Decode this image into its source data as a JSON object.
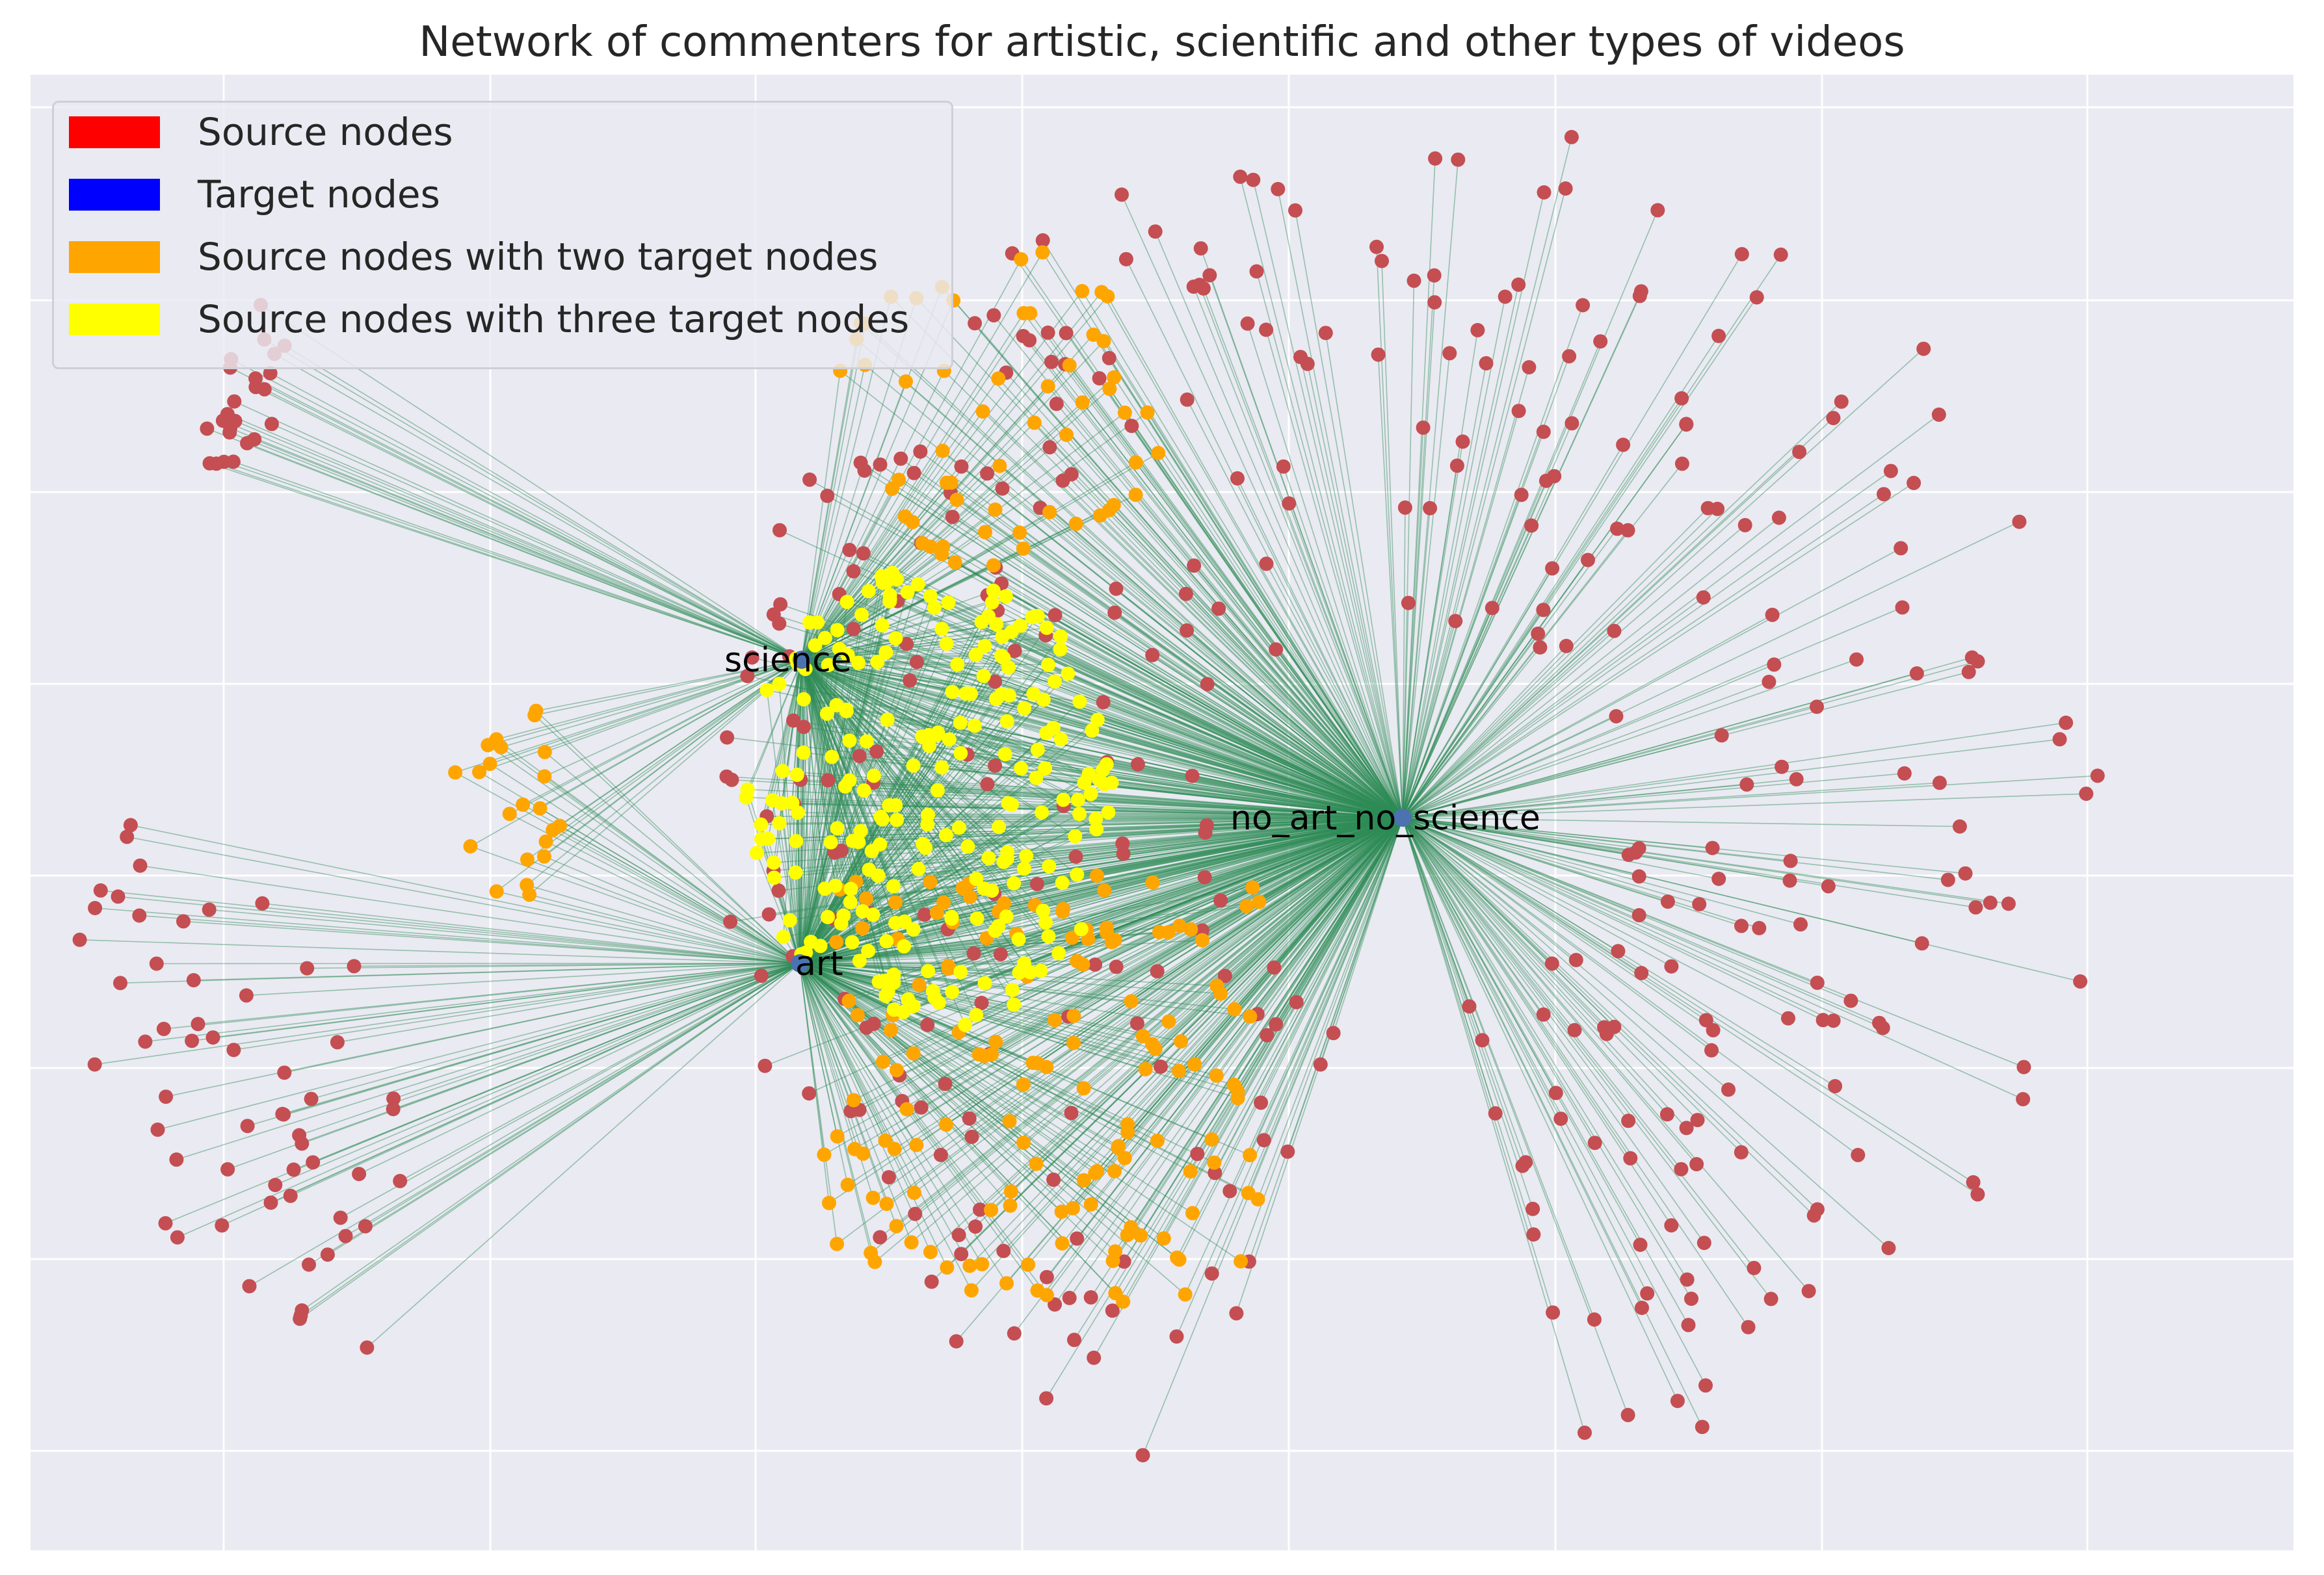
{
  "title": "Network of commenters for artistic, scientific and other types of videos",
  "colors": {
    "background": "#EAEAF2",
    "grid": "#FFFFFF",
    "edge": "#2E8B57",
    "source": "#C44E52",
    "target": "#4C72B0",
    "two_targets": "#FFA500",
    "three_targets": "#FFFF00"
  },
  "legend": {
    "position": "upper-left",
    "items": [
      {
        "label": "Source nodes",
        "color": "#FF0000"
      },
      {
        "label": "Target nodes",
        "color": "#0000FF"
      },
      {
        "label": "Source nodes with two target nodes",
        "color": "#FFA500"
      },
      {
        "label": "Source nodes with three target nodes",
        "color": "#FFFF00"
      }
    ]
  },
  "chart_data": {
    "type": "network",
    "grid": true,
    "target_nodes": [
      {
        "id": "science",
        "label": "science"
      },
      {
        "id": "art",
        "label": "art"
      },
      {
        "id": "no_art_no_science",
        "label": "no_art_no_science"
      }
    ],
    "node_groups": [
      {
        "connects_to": [
          "science"
        ],
        "category": "source",
        "count": 24
      },
      {
        "connects_to": [
          "art"
        ],
        "category": "source",
        "count": 58
      },
      {
        "connects_to": [
          "no_art_no_science"
        ],
        "category": "source",
        "count": 380
      },
      {
        "connects_to": [
          "art",
          "science"
        ],
        "category": "two_targets",
        "count": 22
      },
      {
        "connects_to": [
          "science",
          "no_art_no_science"
        ],
        "category": "two_targets",
        "count": 58
      },
      {
        "connects_to": [
          "art",
          "no_art_no_science"
        ],
        "category": "two_targets",
        "count": 150
      },
      {
        "connects_to": [
          "art",
          "science",
          "no_art_no_science"
        ],
        "category": "three_targets",
        "count": 240
      }
    ]
  }
}
